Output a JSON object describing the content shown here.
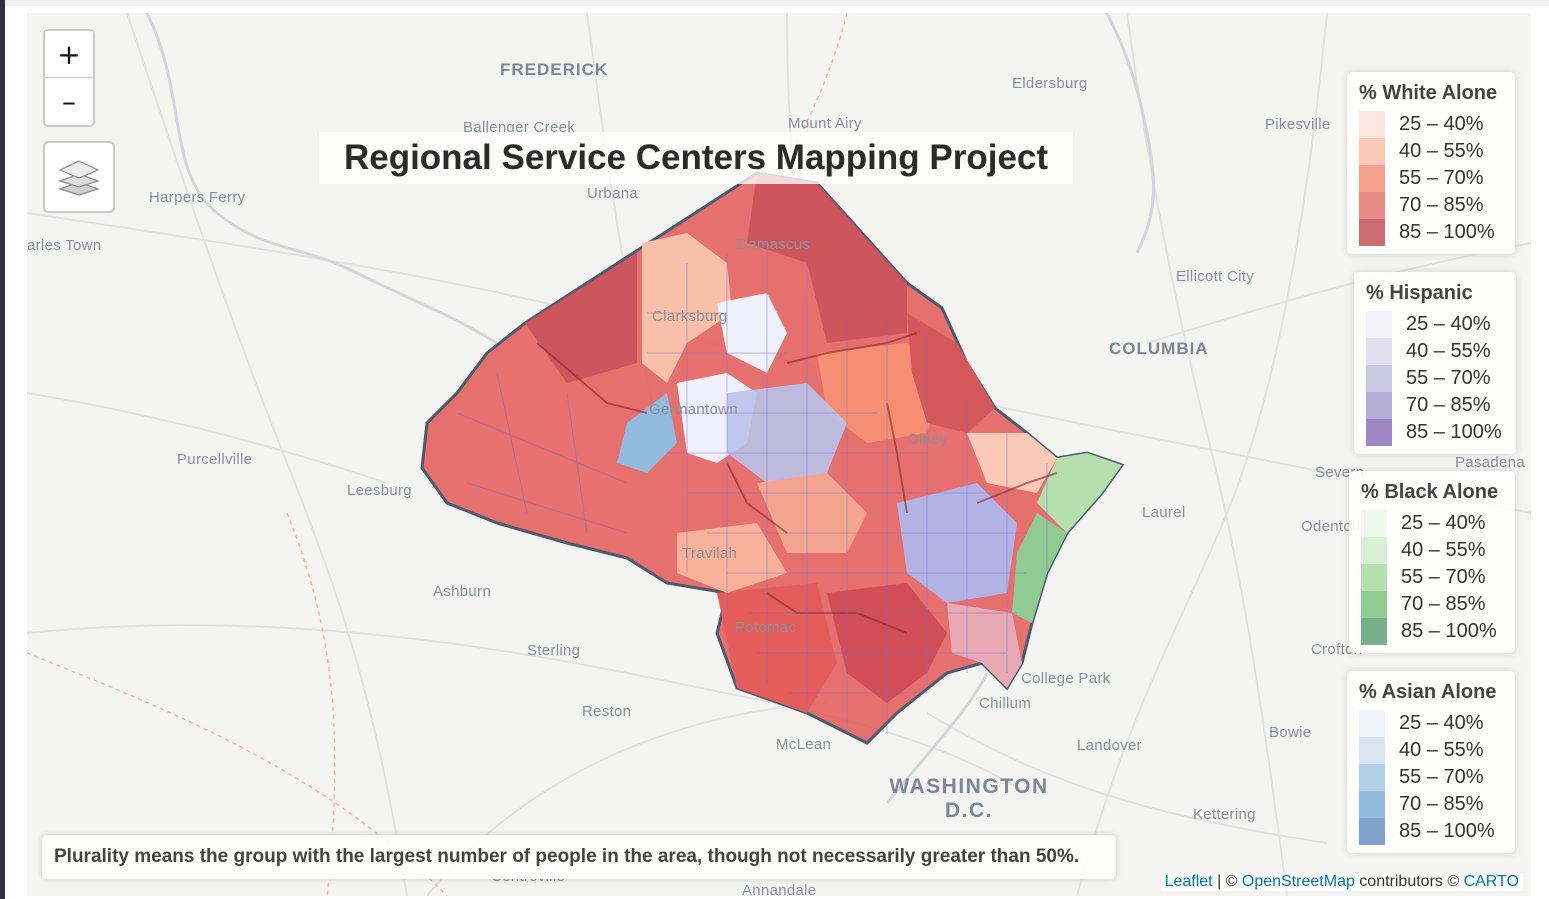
{
  "title": "Regional Service Centers Mapping Project",
  "zoom": {
    "in_label": "+",
    "out_label": "–"
  },
  "layers_control": {
    "icon": "layers-icon"
  },
  "place_labels": [
    {
      "text": "FREDERICK",
      "style": "big"
    },
    {
      "text": "Eldersburg",
      "style": "normal"
    },
    {
      "text": "Ballenger Creek",
      "style": "normal"
    },
    {
      "text": "Mount Airy",
      "style": "normal"
    },
    {
      "text": "Pikesville",
      "style": "normal"
    },
    {
      "text": "Harpers Ferry",
      "style": "normal"
    },
    {
      "text": "Urbana",
      "style": "normal"
    },
    {
      "text": "arles Town",
      "style": "normal"
    },
    {
      "text": "Damascus",
      "style": "normal"
    },
    {
      "text": "Ellicott City",
      "style": "normal"
    },
    {
      "text": "Clarksburg",
      "style": "normal"
    },
    {
      "text": "COLUMBIA",
      "style": "big"
    },
    {
      "text": "Germantown",
      "style": "normal"
    },
    {
      "text": "Olney",
      "style": "normal"
    },
    {
      "text": "Purcellville",
      "style": "normal"
    },
    {
      "text": "Leesburg",
      "style": "normal"
    },
    {
      "text": "Laurel",
      "style": "normal"
    },
    {
      "text": "Severn",
      "style": "normal"
    },
    {
      "text": "Pasadena",
      "style": "normal"
    },
    {
      "text": "Odenton",
      "style": "normal"
    },
    {
      "text": "Ashburn",
      "style": "normal"
    },
    {
      "text": "Travilah",
      "style": "normal"
    },
    {
      "text": "Potomac",
      "style": "normal"
    },
    {
      "text": "Sterling",
      "style": "normal"
    },
    {
      "text": "College Park",
      "style": "normal"
    },
    {
      "text": "Chillum",
      "style": "normal"
    },
    {
      "text": "Reston",
      "style": "normal"
    },
    {
      "text": "McLean",
      "style": "normal"
    },
    {
      "text": "Landover",
      "style": "normal"
    },
    {
      "text": "Bowie",
      "style": "normal"
    },
    {
      "text": "Crofton",
      "style": "normal"
    },
    {
      "text": "WASHINGTON D.C.",
      "style": "huge"
    },
    {
      "text": "Kettering",
      "style": "normal"
    },
    {
      "text": "Centreville",
      "style": "normal"
    },
    {
      "text": "Annandale",
      "style": "normal"
    }
  ],
  "legends": [
    {
      "title": "% White Alone",
      "rows": [
        {
          "label": "25 – 40%",
          "color": "#fde6e0"
        },
        {
          "label": "40 – 55%",
          "color": "#fbc9b8"
        },
        {
          "label": "55 – 70%",
          "color": "#f7a08b"
        },
        {
          "label": "70 – 85%",
          "color": "#e98c86"
        },
        {
          "label": "85 – 100%",
          "color": "#cc6b70"
        }
      ]
    },
    {
      "title": "% Hispanic",
      "rows": [
        {
          "label": "25 – 40%",
          "color": "#f3f1f9"
        },
        {
          "label": "40 – 55%",
          "color": "#e2e0f0"
        },
        {
          "label": "55 – 70%",
          "color": "#cbc8e4"
        },
        {
          "label": "70 – 85%",
          "color": "#b3acd7"
        },
        {
          "label": "85 – 100%",
          "color": "#9d87c7"
        }
      ]
    },
    {
      "title": "% Black Alone",
      "rows": [
        {
          "label": "25 – 40%",
          "color": "#eef8ec"
        },
        {
          "label": "40 – 55%",
          "color": "#d7efd2"
        },
        {
          "label": "55 – 70%",
          "color": "#b5e0ae"
        },
        {
          "label": "70 – 85%",
          "color": "#90cc91"
        },
        {
          "label": "85 – 100%",
          "color": "#78b08a"
        }
      ]
    },
    {
      "title": "% Asian Alone",
      "rows": [
        {
          "label": "25 – 40%",
          "color": "#f0f4fb"
        },
        {
          "label": "40 – 55%",
          "color": "#d9e6f2"
        },
        {
          "label": "55 – 70%",
          "color": "#b2d1e8"
        },
        {
          "label": "70 – 85%",
          "color": "#92badc"
        },
        {
          "label": "85 – 100%",
          "color": "#80a2cc"
        }
      ]
    }
  ],
  "note": "Plurality means the group with the largest number of people in the area, though not necessarily greater than 50%.",
  "attribution": {
    "leaflet": "Leaflet",
    "sep1": " | © ",
    "osm": "OpenStreetMap",
    "mid": " contributors © ",
    "carto": "CARTO"
  },
  "colors": {
    "county_outline": "#4c5a6e",
    "tract_stroke": "#6e6fd0",
    "region_line": "#8c2a2a",
    "accent_link": "#0078a8"
  }
}
